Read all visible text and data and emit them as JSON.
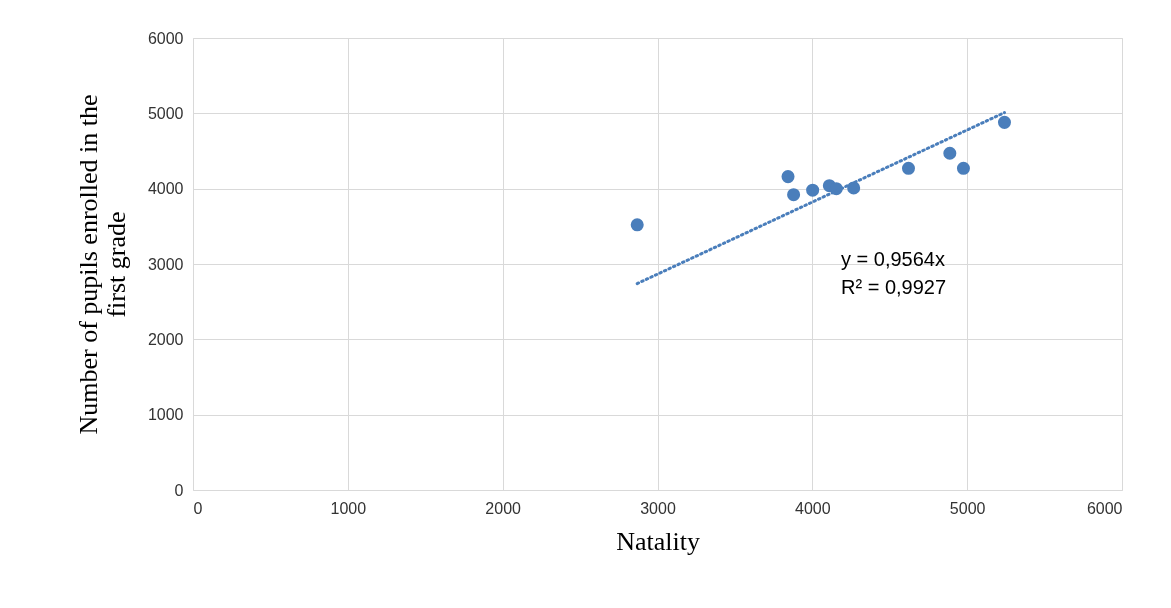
{
  "chart_data": {
    "type": "scatter",
    "xlabel": "Natality",
    "ylabel": "Number of pupils enrolled in the first grade",
    "x": [
      2869,
      3843,
      3879,
      4002,
      4110,
      4155,
      4267,
      4621,
      4888,
      4976,
      5241
    ],
    "series": [
      {
        "color": "#4a7ebb",
        "values": [
          3520,
          4160,
          3920,
          3980,
          4040,
          4000,
          4010,
          4270,
          4470,
          4270,
          4880
        ]
      },
      {
        "type": "line",
        "color": "#4a7ebb",
        "line_style": "dotted",
        "marker": "none",
        "x": [
          2869,
          5241
        ],
        "values": [
          2740,
          5010
        ]
      }
    ],
    "annotations": [
      "y = 0,9564x",
      "R² = 0,9927"
    ],
    "marker": "circle",
    "xlim": [
      0,
      6000
    ],
    "xticks": [
      0,
      1000,
      2000,
      3000,
      4000,
      5000,
      6000
    ],
    "ylim": [
      0,
      6000
    ],
    "yticks": [
      0,
      1000,
      2000,
      3000,
      4000,
      5000,
      6000
    ],
    "grid": true
  }
}
